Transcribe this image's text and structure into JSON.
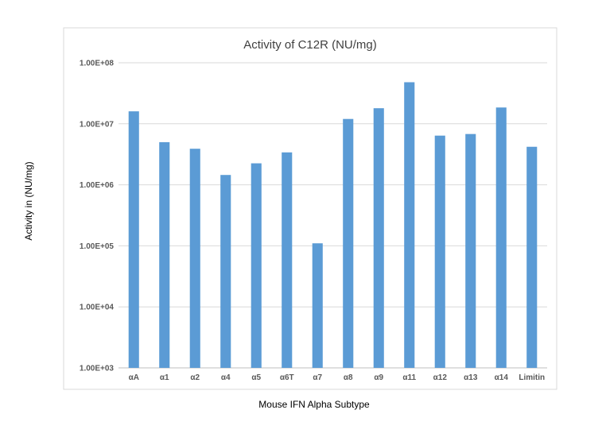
{
  "chart_data": {
    "type": "bar",
    "title": "Activity of C12R (NU/mg)",
    "xlabel": "Mouse IFN Alpha Subtype",
    "ylabel": "Activity in (NU/mg)",
    "yscale": "log",
    "ylim": [
      1000,
      100000000
    ],
    "yticks": [
      1000,
      10000,
      100000,
      1000000,
      10000000,
      100000000
    ],
    "ytick_labels": [
      "1.00E+03",
      "1.00E+04",
      "1.00E+05",
      "1.00E+06",
      "1.00E+07",
      "1.00E+08"
    ],
    "grid": true,
    "legend": "none",
    "bar_color": "#5B9BD5",
    "categories": [
      "αA",
      "α1",
      "α2",
      "α4",
      "α5",
      "α6T",
      "α7",
      "α8",
      "α9",
      "α11",
      "α12",
      "α13",
      "α14",
      "Limitin"
    ],
    "values": [
      16000000,
      5000000,
      3900000,
      1450000,
      2250000,
      3400000,
      110000,
      12000000,
      18000000,
      48000000,
      6400000,
      6800000,
      18500000,
      4200000
    ]
  }
}
